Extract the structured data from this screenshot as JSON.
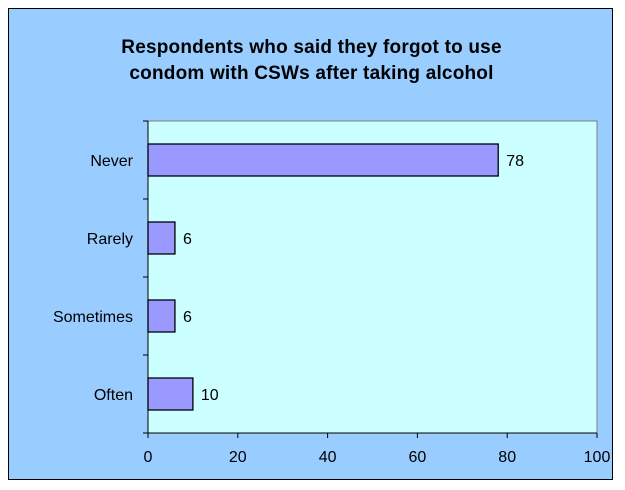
{
  "chart_data": {
    "type": "bar",
    "orientation": "horizontal",
    "title_lines": [
      "Respondents who said they forgot to use",
      "condom with CSWs after taking alcohol"
    ],
    "categories": [
      "Never",
      "Rarely",
      "Sometimes",
      "Often"
    ],
    "values": [
      78,
      6,
      6,
      10
    ],
    "data_labels": [
      "78",
      "6",
      "6",
      "10"
    ],
    "xlim": [
      0,
      100
    ],
    "x_ticks": [
      0,
      20,
      40,
      60,
      80,
      100
    ],
    "x_tick_labels": [
      "0",
      "20",
      "40",
      "60",
      "80",
      "100"
    ],
    "xlabel": "",
    "ylabel": "",
    "grid": false,
    "legend": "none",
    "colors": {
      "chart_background": "#99ccff",
      "plot_background": "#ccffff",
      "bar_fill": "#9999ff",
      "bar_stroke": "#000000"
    }
  }
}
